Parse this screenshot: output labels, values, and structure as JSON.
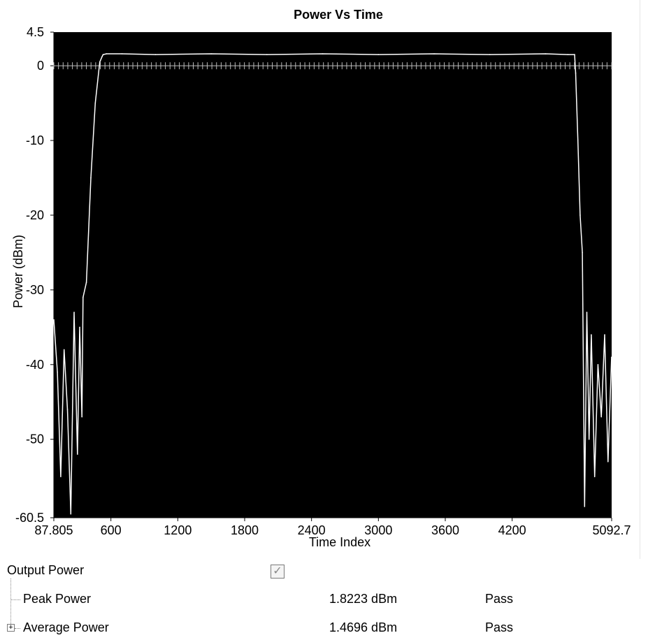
{
  "chart_data": {
    "type": "line",
    "title": "Power Vs Time",
    "xlabel": "Time Index",
    "ylabel": "Power (dBm)",
    "xlim": [
      87.805,
      5092.7
    ],
    "ylim": [
      -60.5,
      4.5
    ],
    "x_ticks": [
      {
        "value": 87.805,
        "label": "87.805"
      },
      {
        "value": 600,
        "label": "600"
      },
      {
        "value": 1200,
        "label": "1200"
      },
      {
        "value": 1800,
        "label": "1800"
      },
      {
        "value": 2400,
        "label": "2400"
      },
      {
        "value": 3000,
        "label": "3000"
      },
      {
        "value": 3600,
        "label": "3600"
      },
      {
        "value": 4200,
        "label": "4200"
      },
      {
        "value": 5092.7,
        "label": "5092.7"
      }
    ],
    "y_ticks": [
      {
        "value": 4.5,
        "label": "4.5"
      },
      {
        "value": 0,
        "label": "0"
      },
      {
        "value": -10,
        "label": "-10"
      },
      {
        "value": -20,
        "label": "-20"
      },
      {
        "value": -30,
        "label": "-30"
      },
      {
        "value": -40,
        "label": "-40"
      },
      {
        "value": -50,
        "label": "-50"
      },
      {
        "value": -60.5,
        "label": "-60.5"
      }
    ],
    "background": "#000000",
    "line_color": "#ffffff",
    "grid": false,
    "series": [
      {
        "x": [
          88,
          120,
          150,
          180,
          210,
          240,
          270,
          300,
          320,
          340,
          350,
          380,
          420,
          460,
          500,
          520,
          530,
          560,
          700,
          1000,
          1500,
          2000,
          2500,
          3000,
          3500,
          4000,
          4500,
          4700,
          4760,
          4770,
          4790,
          4810,
          4830,
          4850,
          4870,
          4890,
          4910,
          4940,
          4970,
          5000,
          5030,
          5060,
          5092
        ],
        "y": [
          -34,
          -41,
          -55,
          -38,
          -46,
          -60,
          -33,
          -52,
          -35,
          -47,
          -31,
          -29,
          -15,
          -5,
          0.5,
          1.2,
          1.5,
          1.6,
          1.6,
          1.5,
          1.6,
          1.5,
          1.6,
          1.5,
          1.6,
          1.5,
          1.6,
          1.5,
          1.5,
          -1,
          -10,
          -20,
          -25,
          -59,
          -33,
          -50,
          -36,
          -55,
          -40,
          -47,
          -36,
          -53,
          -39
        ]
      }
    ]
  },
  "results": {
    "group_label": "Output Power",
    "group_checked": true,
    "check_glyph": "✓",
    "expand_glyph": "+",
    "rows": [
      {
        "label": "Peak Power",
        "value": "1.8223 dBm",
        "status": "Pass"
      },
      {
        "label": "Average Power",
        "value": "1.4696 dBm",
        "status": "Pass"
      }
    ]
  }
}
